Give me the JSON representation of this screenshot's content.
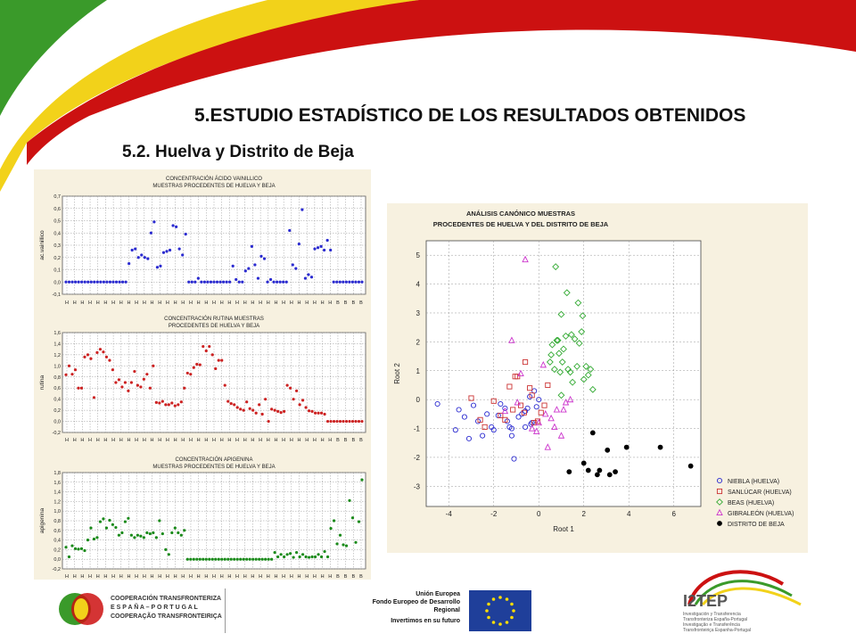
{
  "slide": {
    "title": "5.ESTUDIO ESTADÍSTICO DE LOS RESULTADOS OBTENIDOS",
    "subtitle": "5.2. Huelva y Distrito de Beja"
  },
  "colors": {
    "swoosh_green": "#3a9a2a",
    "swoosh_yellow": "#f2d21a",
    "swoosh_red": "#cc1111",
    "panel_bg": "#f7f1e0",
    "niebla": "#2b2bd0",
    "sanlucar": "#cc3333",
    "beas": "#33aa33",
    "gibraleon": "#cc33cc",
    "beja": "#000000"
  },
  "footer": {
    "poctep_lines": [
      "COOPERACIÓN TRANSFRONTERIZA",
      "E S P A Ñ A – P O R T U G A L",
      "COOPERAÇÃO TRANSFRONTEIRIÇA"
    ],
    "eu_lines": [
      "Unión Europea",
      "Fondo Europeo de Desarrollo",
      "Regional",
      "Invertimos en su futuro"
    ],
    "i2tep_name": "I2TEP",
    "i2tep_lines": [
      "Investigación y Transferencia",
      "Transfronteriza España-Portugal",
      "Investigação e Transferência",
      "Transfronteiriça Espanha-Portugal"
    ]
  },
  "chart_data": [
    {
      "type": "scatter",
      "title": "CONCENTRACIÓN ÁCIDO VAINILLICO",
      "subtitle": "MUESTRAS PROCEDENTES DE HUELVA Y BEJA",
      "ylabel": "ac.vainillico",
      "ylim": [
        -0.1,
        0.7
      ],
      "yticks": [
        -0.1,
        0.0,
        0.1,
        0.2,
        0.3,
        0.4,
        0.5,
        0.6,
        0.7
      ],
      "ytick_labels": [
        "-0,1",
        "0,0",
        "0,1",
        "0,2",
        "0,3",
        "0,4",
        "0,5",
        "0,6",
        "0,7"
      ],
      "categories": [
        "H",
        "H",
        "H",
        "H",
        "H",
        "H",
        "H",
        "H",
        "H",
        "H",
        "H",
        "H",
        "H",
        "H",
        "H",
        "H",
        "H",
        "H",
        "H",
        "H",
        "H",
        "H",
        "H",
        "H",
        "H",
        "H",
        "H",
        "H",
        "H",
        "H",
        "H",
        "H",
        "H",
        "H",
        "H",
        "B",
        "B",
        "B",
        "B"
      ],
      "color": "#2b2bd0",
      "values": [
        0,
        0,
        0,
        0,
        0,
        0,
        0,
        0,
        0,
        0,
        0,
        0,
        0,
        0,
        0,
        0,
        0,
        0,
        0,
        0,
        0.15,
        0.26,
        0.27,
        0.2,
        0.22,
        0.2,
        0.19,
        0.4,
        0.49,
        0.12,
        0.13,
        0.24,
        0.25,
        0.26,
        0.46,
        0.45,
        0.27,
        0.22,
        0.39,
        0,
        0,
        0,
        0.03,
        0,
        0,
        0,
        0,
        0,
        0,
        0,
        0,
        0,
        0,
        0.13,
        0.02,
        0,
        0,
        0.09,
        0.11,
        0.29,
        0.14,
        0.03,
        0.21,
        0.19,
        0,
        0.02,
        0,
        0,
        0,
        0,
        0,
        0.42,
        0.14,
        0.11,
        0.31,
        0.59,
        0.03,
        0.06,
        0.04,
        0.27,
        0.28,
        0.29,
        0.26,
        0.34,
        0.26,
        0,
        0,
        0,
        0,
        0,
        0,
        0,
        0,
        0,
        0
      ]
    },
    {
      "type": "scatter",
      "title": "CONCENTRACIÓN RUTINA MUESTRAS",
      "subtitle": "PROCEDENTES DE HUELVA Y BEJA",
      "ylabel": "rutina",
      "ylim": [
        -0.2,
        1.6
      ],
      "yticks": [
        -0.2,
        0.0,
        0.2,
        0.4,
        0.6,
        0.8,
        1.0,
        1.2,
        1.4,
        1.6
      ],
      "ytick_labels": [
        "-0,2",
        "0,0",
        "0,2",
        "0,4",
        "0,6",
        "0,8",
        "1,0",
        "1,2",
        "1,4",
        "1,6"
      ],
      "categories": [
        "H",
        "H",
        "H",
        "H",
        "H",
        "H",
        "H",
        "H",
        "H",
        "H",
        "H",
        "H",
        "H",
        "H",
        "H",
        "H",
        "H",
        "H",
        "H",
        "H",
        "H",
        "H",
        "H",
        "H",
        "H",
        "H",
        "H",
        "H",
        "H",
        "H",
        "H",
        "H",
        "H",
        "H",
        "H",
        "B",
        "B",
        "B",
        "B"
      ],
      "color": "#cc2222",
      "values": [
        0.84,
        1.0,
        0.85,
        0.93,
        0.6,
        0.6,
        1.16,
        1.2,
        1.13,
        0.43,
        1.24,
        1.3,
        1.25,
        1.16,
        1.1,
        0.93,
        0.7,
        0.75,
        0.62,
        0.7,
        0.55,
        0.7,
        0.9,
        0.65,
        0.62,
        0.76,
        0.85,
        0.6,
        1.0,
        0.34,
        0.33,
        0.36,
        0.3,
        0.3,
        0.33,
        0.28,
        0.3,
        0.35,
        0.6,
        0.87,
        0.85,
        0.97,
        1.03,
        1.02,
        1.35,
        1.27,
        1.35,
        1.2,
        0.95,
        1.1,
        1.1,
        0.65,
        0.36,
        0.32,
        0.3,
        0.25,
        0.22,
        0.2,
        0.35,
        0.23,
        0.2,
        0.15,
        0.3,
        0.13,
        0.4,
        0.0,
        0.22,
        0.2,
        0.18,
        0.16,
        0.18,
        0.65,
        0.6,
        0.4,
        0.55,
        0.3,
        0.38,
        0.25,
        0.19,
        0.18,
        0.15,
        0.15,
        0.15,
        0.13,
        0,
        0,
        0,
        0,
        0,
        0,
        0,
        0,
        0,
        0,
        0,
        0
      ]
    },
    {
      "type": "scatter",
      "title": "CONCENTRACIÓN APIGENINA",
      "subtitle": "MUESTRAS PROCEDENTES DE HUELVA Y BEJA",
      "ylabel": "apigenina",
      "ylim": [
        -0.2,
        1.8
      ],
      "yticks": [
        -0.2,
        0.0,
        0.2,
        0.4,
        0.6,
        0.8,
        1.0,
        1.2,
        1.4,
        1.6,
        1.8
      ],
      "ytick_labels": [
        "-0,2",
        "0,0",
        "0,2",
        "0,4",
        "0,6",
        "0,8",
        "1,0",
        "1,2",
        "1,4",
        "1,6",
        "1,8"
      ],
      "categories": [
        "H",
        "H",
        "H",
        "H",
        "H",
        "H",
        "H",
        "H",
        "H",
        "H",
        "H",
        "H",
        "H",
        "H",
        "H",
        "H",
        "H",
        "H",
        "H",
        "H",
        "H",
        "H",
        "H",
        "H",
        "H",
        "H",
        "H",
        "H",
        "H",
        "H",
        "H",
        "H",
        "H",
        "H",
        "H",
        "B",
        "B",
        "B",
        "B"
      ],
      "color": "#1a8a1a",
      "values": [
        0.25,
        0.05,
        0.28,
        0.22,
        0.21,
        0.22,
        0.18,
        0.4,
        0.65,
        0.42,
        0.45,
        0.78,
        0.84,
        0.65,
        0.81,
        0.72,
        0.66,
        0.5,
        0.55,
        0.78,
        0.85,
        0.5,
        0.45,
        0.5,
        0.48,
        0.45,
        0.55,
        0.53,
        0.55,
        0.45,
        0.8,
        0.53,
        0.2,
        0.1,
        0.55,
        0.65,
        0.55,
        0.5,
        0.6,
        0,
        0,
        0,
        0,
        0,
        0,
        0,
        0,
        0,
        0,
        0,
        0,
        0,
        0,
        0,
        0,
        0,
        0,
        0,
        0,
        0,
        0,
        0,
        0,
        0,
        0,
        0,
        0,
        0.14,
        0.05,
        0.1,
        0.05,
        0.1,
        0.12,
        0.04,
        0.14,
        0.05,
        0.1,
        0.05,
        0.04,
        0.05,
        0.05,
        0.1,
        0.05,
        0.16,
        0.05,
        0.64,
        0.8,
        0.32,
        0.5,
        0.3,
        0.28,
        1.22,
        0.86,
        0.35,
        0.78,
        1.65
      ]
    },
    {
      "type": "scatter",
      "title": "ANÁLISIS CANÓNICO MUESTRAS",
      "subtitle": "PROCEDENTES DE HUELVA Y DEL DISTRITO DE BEJA",
      "xlabel": "Root 1",
      "ylabel": "Root 2",
      "xlim": [
        -5,
        7.2
      ],
      "ylim": [
        -3.7,
        5.5
      ],
      "xticks": [
        -4,
        -2,
        0,
        2,
        4,
        6
      ],
      "yticks": [
        -3,
        -2,
        -1,
        0,
        1,
        2,
        3,
        4,
        5
      ],
      "legend": "bottom-right",
      "series": [
        {
          "name": "NIEBLA (HUELVA)",
          "color": "#2b2bd0",
          "marker": "circle",
          "points": [
            [
              -4.5,
              -0.15
            ],
            [
              -3.7,
              -1.05
            ],
            [
              -3.55,
              -0.35
            ],
            [
              -3.3,
              -0.6
            ],
            [
              -3.1,
              -1.35
            ],
            [
              -2.9,
              -0.2
            ],
            [
              -2.7,
              -0.75
            ],
            [
              -2.5,
              -1.25
            ],
            [
              -2.3,
              -0.5
            ],
            [
              -2.1,
              -0.95
            ],
            [
              -2.0,
              -1.05
            ],
            [
              -1.8,
              -0.55
            ],
            [
              -1.7,
              -0.15
            ],
            [
              -1.5,
              -0.3
            ],
            [
              -1.4,
              -0.75
            ],
            [
              -1.3,
              -0.95
            ],
            [
              -1.2,
              -1.25
            ],
            [
              -1.1,
              -2.05
            ],
            [
              -0.9,
              -0.6
            ],
            [
              -0.75,
              -0.5
            ],
            [
              -0.6,
              -0.4
            ],
            [
              -0.5,
              -0.3
            ],
            [
              -0.4,
              0.1
            ],
            [
              -0.3,
              -0.8
            ],
            [
              -0.1,
              -0.25
            ],
            [
              0.0,
              0.0
            ],
            [
              -0.2,
              0.3
            ],
            [
              -0.6,
              -0.95
            ],
            [
              -1.2,
              -1.0
            ],
            [
              -0.35,
              -0.85
            ]
          ]
        },
        {
          "name": "SANLÚCAR (HUELVA)",
          "color": "#cc3333",
          "marker": "square",
          "points": [
            [
              -3.0,
              0.05
            ],
            [
              -2.6,
              -0.7
            ],
            [
              -2.4,
              -0.95
            ],
            [
              -2.0,
              -0.05
            ],
            [
              -1.7,
              -0.55
            ],
            [
              -1.5,
              -0.7
            ],
            [
              -1.3,
              0.45
            ],
            [
              -1.05,
              0.8
            ],
            [
              -0.95,
              0.8
            ],
            [
              -0.8,
              -0.2
            ],
            [
              -0.6,
              1.3
            ],
            [
              -0.4,
              0.4
            ],
            [
              -0.3,
              0.15
            ],
            [
              -0.2,
              -0.8
            ],
            [
              -0.05,
              -0.75
            ],
            [
              0.1,
              -0.45
            ],
            [
              0.25,
              -0.2
            ],
            [
              0.4,
              0.5
            ],
            [
              -0.65,
              -0.45
            ],
            [
              -1.15,
              -0.35
            ]
          ]
        },
        {
          "name": "BEAS (HUELVA)",
          "color": "#33aa33",
          "marker": "diamond",
          "points": [
            [
              0.5,
              1.3
            ],
            [
              0.6,
              1.9
            ],
            [
              0.7,
              1.05
            ],
            [
              0.8,
              2.05
            ],
            [
              0.85,
              2.05
            ],
            [
              0.9,
              1.6
            ],
            [
              0.95,
              0.95
            ],
            [
              1.0,
              2.95
            ],
            [
              1.05,
              1.3
            ],
            [
              1.1,
              1.75
            ],
            [
              1.2,
              2.2
            ],
            [
              1.25,
              3.7
            ],
            [
              1.3,
              1.05
            ],
            [
              1.4,
              0.95
            ],
            [
              1.45,
              2.25
            ],
            [
              1.5,
              0.6
            ],
            [
              1.6,
              2.1
            ],
            [
              1.7,
              1.15
            ],
            [
              1.75,
              3.35
            ],
            [
              1.8,
              1.95
            ],
            [
              1.9,
              2.35
            ],
            [
              1.95,
              2.9
            ],
            [
              2.0,
              0.7
            ],
            [
              2.1,
              1.15
            ],
            [
              2.2,
              0.85
            ],
            [
              2.3,
              1.05
            ],
            [
              2.4,
              0.35
            ],
            [
              0.75,
              4.6
            ],
            [
              0.55,
              1.55
            ],
            [
              1.0,
              0.15
            ]
          ]
        },
        {
          "name": "GIBRALEÓN (HUELVA)",
          "color": "#cc33cc",
          "marker": "triangle",
          "points": [
            [
              -1.5,
              -0.4
            ],
            [
              -1.2,
              2.05
            ],
            [
              -0.95,
              -0.1
            ],
            [
              -0.8,
              0.9
            ],
            [
              -0.6,
              4.85
            ],
            [
              -0.3,
              -1.0
            ],
            [
              -0.1,
              -1.1
            ],
            [
              0.0,
              -0.8
            ],
            [
              0.2,
              1.2
            ],
            [
              0.4,
              -1.65
            ],
            [
              0.55,
              -0.65
            ],
            [
              0.7,
              -0.95
            ],
            [
              0.8,
              -0.35
            ],
            [
              1.0,
              -1.25
            ],
            [
              1.1,
              -0.35
            ],
            [
              1.2,
              -0.1
            ],
            [
              1.4,
              0.0
            ],
            [
              0.3,
              -0.5
            ]
          ]
        },
        {
          "name": "DISTRITO DE BEJA",
          "color": "#000000",
          "marker": "filled-circle",
          "points": [
            [
              1.35,
              -2.5
            ],
            [
              2.0,
              -2.2
            ],
            [
              2.2,
              -2.45
            ],
            [
              2.4,
              -1.15
            ],
            [
              2.6,
              -2.6
            ],
            [
              2.7,
              -2.45
            ],
            [
              3.05,
              -1.75
            ],
            [
              3.15,
              -2.6
            ],
            [
              3.4,
              -2.5
            ],
            [
              3.9,
              -1.65
            ],
            [
              5.4,
              -1.65
            ],
            [
              6.75,
              -2.3
            ]
          ]
        }
      ]
    }
  ]
}
